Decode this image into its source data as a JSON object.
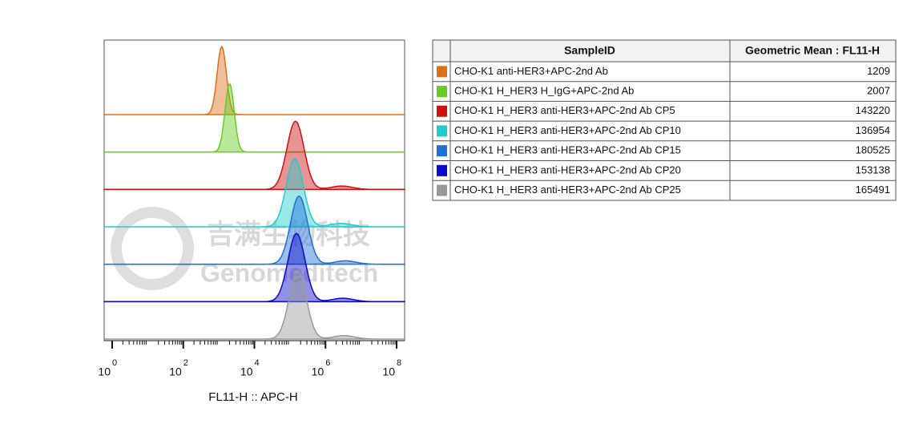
{
  "chart_data": {
    "type": "histogram-overlay",
    "xlabel": "FL11-H :: APC-H",
    "log_x": true,
    "xlim": [
      1,
      100000000
    ],
    "xticks": [
      {
        "value": 1,
        "label": "10",
        "exponent": "0"
      },
      {
        "value": 100,
        "label": "10",
        "exponent": "2"
      },
      {
        "value": 10000,
        "label": "10",
        "exponent": "4"
      },
      {
        "value": 1000000,
        "label": "10",
        "exponent": "6"
      },
      {
        "value": 100000000,
        "label": "10",
        "exponent": "8"
      }
    ],
    "watermark": [
      "吉满生物科技",
      "Genomeditech"
    ],
    "columns": [
      "SampleID",
      "Geometric Mean : FL11-H"
    ],
    "series": [
      {
        "name": "CHO-K1 anti-HER3+APC-2nd Ab",
        "color": "#d9711c",
        "value": 1209
      },
      {
        "name": "CHO-K1 H_HER3 H_IgG+APC-2nd Ab",
        "color": "#66cc22",
        "value": 2007
      },
      {
        "name": "CHO-K1  H_HER3 anti-HER3+APC-2nd Ab CP5",
        "color": "#cc1111",
        "value": 143220
      },
      {
        "name": "CHO-K1  H_HER3 anti-HER3+APC-2nd Ab CP10",
        "color": "#22cccc",
        "value": 136954
      },
      {
        "name": "CHO-K1  H_HER3 anti-HER3+APC-2nd Ab CP15",
        "color": "#1f6fd6",
        "value": 180525
      },
      {
        "name": "CHO-K1  H_HER3 anti-HER3+APC-2nd Ab CP20",
        "color": "#0a0ac8",
        "value": 153138
      },
      {
        "name": "CHO-K1  H_HER3 anti-HER3+APC-2nd Ab CP25",
        "color": "#999999",
        "value": 165491
      }
    ]
  }
}
